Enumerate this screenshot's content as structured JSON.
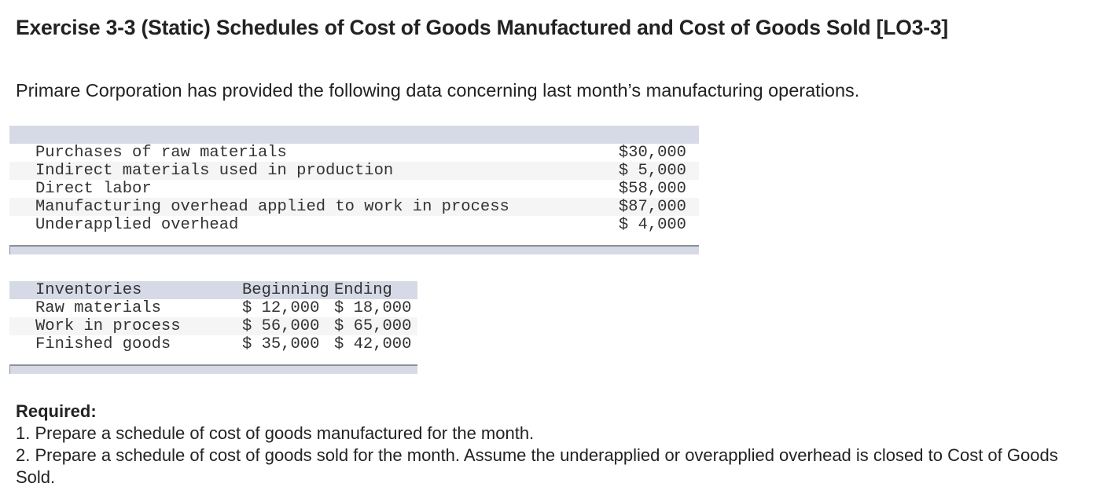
{
  "title": "Exercise 3-3 (Static) Schedules of Cost of Goods Manufactured and Cost of Goods Sold [LO3-3]",
  "intro": "Primare Corporation has provided the following data concerning last month’s manufacturing operations.",
  "costs_table": {
    "rows": [
      {
        "label": "Purchases of raw materials",
        "value": "$30,000"
      },
      {
        "label": "Indirect materials used in production",
        "value": "$ 5,000"
      },
      {
        "label": "Direct labor",
        "value": "$58,000"
      },
      {
        "label": "Manufacturing overhead applied to work in process",
        "value": "$87,000"
      },
      {
        "label": "Underapplied overhead",
        "value": "$ 4,000"
      }
    ]
  },
  "inventory_table": {
    "headers": [
      "Inventories",
      "Beginning",
      "Ending"
    ],
    "rows": [
      {
        "label": "Raw materials",
        "beginning": "$ 12,000",
        "ending": "$ 18,000"
      },
      {
        "label": "Work in process",
        "beginning": "$ 56,000",
        "ending": "$ 65,000"
      },
      {
        "label": "Finished goods",
        "beginning": "$ 35,000",
        "ending": "$ 42,000"
      }
    ]
  },
  "required": {
    "heading": "Required:",
    "items": [
      "1. Prepare a schedule of cost of goods manufactured for the month.",
      "2. Prepare a schedule of cost of goods sold for the month. Assume the underapplied or overapplied overhead is closed to Cost of Goods Sold."
    ]
  }
}
